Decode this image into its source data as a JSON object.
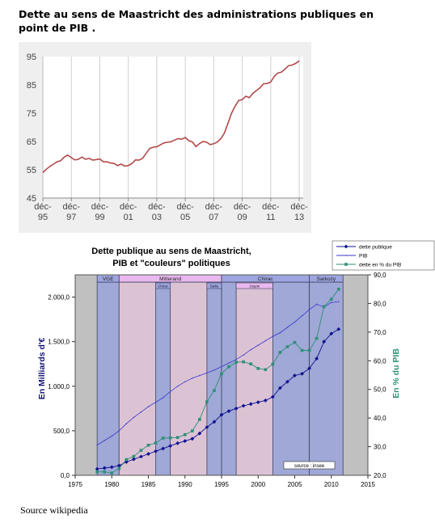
{
  "page": {
    "heading": "Dette au sens de Maastricht des administrations publiques en point de PIB .",
    "source": "Source wikipedia"
  },
  "chart_data": [
    {
      "type": "line",
      "title": "",
      "xlabel": "",
      "ylabel": "",
      "ylim": [
        45,
        95
      ],
      "yticks": [
        45,
        55,
        65,
        75,
        85,
        95
      ],
      "xticks": [
        {
          "x": 1995.92,
          "line1": "déc-",
          "line2": "95"
        },
        {
          "x": 1997.92,
          "line1": "déc-",
          "line2": "97"
        },
        {
          "x": 1999.92,
          "line1": "déc-",
          "line2": "99"
        },
        {
          "x": 2001.92,
          "line1": "déc-",
          "line2": "01"
        },
        {
          "x": 2003.92,
          "line1": "déc-",
          "line2": "03"
        },
        {
          "x": 2005.92,
          "line1": "déc-",
          "line2": "05"
        },
        {
          "x": 2007.92,
          "line1": "déc-",
          "line2": "07"
        },
        {
          "x": 2009.92,
          "line1": "déc-",
          "line2": "09"
        },
        {
          "x": 2011.92,
          "line1": "déc-",
          "line2": "11"
        },
        {
          "x": 2013.92,
          "line1": "déc-",
          "line2": "13"
        }
      ],
      "xlim": [
        1995.92,
        2014.2
      ],
      "grid": "vertical",
      "line_color": "#b24a4a",
      "series": [
        {
          "x": [
            1995.92,
            1996.17,
            1996.42,
            1996.67,
            1996.92,
            1997.17,
            1997.42,
            1997.67,
            1997.92,
            1998.17,
            1998.42,
            1998.67,
            1998.92,
            1999.17,
            1999.42,
            1999.67,
            1999.92,
            2000.17,
            2000.42,
            2000.67,
            2000.92,
            2001.17,
            2001.42,
            2001.67,
            2001.92,
            2002.17,
            2002.42,
            2002.67,
            2002.92,
            2003.17,
            2003.42,
            2003.67,
            2003.92,
            2004.17,
            2004.42,
            2004.67,
            2004.92,
            2005.17,
            2005.42,
            2005.67,
            2005.92,
            2006.17,
            2006.42,
            2006.67,
            2006.92,
            2007.17,
            2007.42,
            2007.67,
            2007.92,
            2008.17,
            2008.42,
            2008.67,
            2008.92,
            2009.17,
            2009.42,
            2009.67,
            2009.92,
            2010.17,
            2010.42,
            2010.67,
            2010.92,
            2011.17,
            2011.42,
            2011.67,
            2011.92,
            2012.17,
            2012.42,
            2012.67,
            2012.92,
            2013.17,
            2013.42,
            2013.67,
            2013.92
          ],
          "values": [
            54.0,
            55.2,
            56.2,
            57.0,
            57.8,
            58.2,
            59.5,
            60.2,
            59.3,
            58.5,
            58.7,
            59.5,
            58.7,
            59.0,
            58.4,
            58.6,
            58.8,
            57.8,
            57.8,
            57.4,
            57.2,
            56.5,
            57.0,
            56.3,
            56.5,
            57.2,
            58.5,
            58.4,
            59.0,
            60.8,
            62.5,
            63.0,
            63.1,
            63.8,
            64.5,
            64.7,
            64.9,
            65.5,
            66.0,
            65.8,
            66.4,
            65.3,
            64.8,
            63.2,
            64.3,
            65.0,
            64.7,
            63.9,
            64.2,
            64.8,
            66.0,
            68.0,
            71.5,
            75.0,
            77.5,
            79.5,
            79.8,
            81.0,
            80.5,
            82.0,
            83.0,
            84.0,
            85.4,
            85.5,
            86.0,
            88.0,
            89.2,
            89.5,
            90.6,
            91.8,
            92.0,
            92.6,
            93.5
          ]
        }
      ]
    },
    {
      "type": "line",
      "title": [
        "Dette publique au sens de Maastricht,",
        "PIB et \"couleurs\" politiques"
      ],
      "xlabel": "",
      "ylabel_left": "En Milliards d'€",
      "ylabel_right": "En % du PIB",
      "xlim": [
        1975,
        2015
      ],
      "xticks": [
        1975,
        1980,
        1985,
        1990,
        1995,
        2000,
        2005,
        2010,
        2015
      ],
      "ylim_left": [
        0,
        2250
      ],
      "yticks_left": [
        "0,0",
        "500,0",
        "1.000,0",
        "1.500,0",
        "2.000,0"
      ],
      "yticks_left_values": [
        0,
        500,
        1000,
        1500,
        2000
      ],
      "ylim_right": [
        20,
        90
      ],
      "yticks_right": [
        "20,0",
        "30,0",
        "40,0",
        "50,0",
        "60,0",
        "70,0",
        "80,0",
        "90,0"
      ],
      "yticks_right_values": [
        20,
        30,
        40,
        50,
        60,
        70,
        80,
        90
      ],
      "annotation": "source : insee",
      "legend_position": "top-right",
      "presidents": [
        {
          "name": "VGE",
          "start": 1978,
          "end": 1981,
          "color": "#9fa8d6",
          "header_color": "#9ea6e0"
        },
        {
          "name": "Mitterand",
          "start": 1981,
          "end": 1995,
          "color": "#dcc3d4",
          "header_color": "#e8b8ee"
        },
        {
          "name": "Chirac",
          "start": 1995,
          "end": 2007,
          "color": "#9fa8d6",
          "header_color": "#9ea6e0"
        },
        {
          "name": "Sarkozy",
          "start": 2007,
          "end": 2011.6,
          "color": "#9fa8d6",
          "header_color": "#9ea6e0"
        }
      ],
      "cohabitations": [
        {
          "name": "Chirac",
          "start": 1986,
          "end": 1988
        },
        {
          "name": "Balla",
          "start": 1993,
          "end": 1995
        },
        {
          "name": "Jospin",
          "start": 1997,
          "end": 2002
        }
      ],
      "series": [
        {
          "name": "dette publique",
          "color": "#101090",
          "axis": "left",
          "x": [
            1978,
            1979,
            1980,
            1981,
            1982,
            1983,
            1984,
            1985,
            1986,
            1987,
            1988,
            1989,
            1990,
            1991,
            1992,
            1993,
            1994,
            1995,
            1996,
            1997,
            1998,
            1999,
            2000,
            2001,
            2002,
            2003,
            2004,
            2005,
            2006,
            2007,
            2008,
            2009,
            2010,
            2011
          ],
          "values": [
            72,
            82,
            92,
            110,
            150,
            180,
            210,
            240,
            270,
            300,
            330,
            360,
            385,
            410,
            470,
            540,
            600,
            680,
            720,
            750,
            780,
            800,
            820,
            840,
            880,
            980,
            1050,
            1120,
            1140,
            1200,
            1310,
            1500,
            1590,
            1640
          ]
        },
        {
          "name": "PIB",
          "color": "#3a3acc",
          "axis": "left",
          "x": [
            1978,
            1979,
            1980,
            1981,
            1982,
            1983,
            1984,
            1985,
            1986,
            1987,
            1988,
            1989,
            1990,
            1991,
            1992,
            1993,
            1994,
            1995,
            1996,
            1997,
            1998,
            1999,
            2000,
            2001,
            2002,
            2003,
            2004,
            2005,
            2006,
            2007,
            2008,
            2009,
            2010,
            2011
          ],
          "values": [
            340,
            390,
            440,
            500,
            580,
            650,
            710,
            770,
            820,
            870,
            940,
            1000,
            1050,
            1090,
            1120,
            1150,
            1180,
            1220,
            1260,
            1300,
            1350,
            1410,
            1460,
            1510,
            1560,
            1600,
            1660,
            1720,
            1790,
            1860,
            1920,
            1890,
            1940,
            1950
          ]
        },
        {
          "name": "dette en % du PIB",
          "color": "#2e8f76",
          "axis": "right",
          "x": [
            1978,
            1979,
            1980,
            1981,
            1982,
            1983,
            1984,
            1985,
            1986,
            1987,
            1988,
            1989,
            1990,
            1991,
            1992,
            1993,
            1994,
            1995,
            1996,
            1997,
            1998,
            1999,
            2000,
            2001,
            2002,
            2003,
            2004,
            2005,
            2006,
            2007,
            2008,
            2009,
            2010,
            2011
          ],
          "values": [
            21.2,
            21.2,
            20.8,
            22.4,
            25.5,
            26.6,
            28.7,
            30.5,
            31.3,
            33.0,
            33.1,
            33.2,
            34.2,
            35.5,
            39.5,
            45.7,
            49.6,
            55.5,
            57.9,
            59.5,
            59.6,
            58.9,
            57.3,
            56.9,
            58.8,
            62.9,
            64.9,
            66.4,
            63.6,
            63.6,
            67.8,
            78.9,
            81.5,
            85.0
          ]
        }
      ]
    }
  ]
}
